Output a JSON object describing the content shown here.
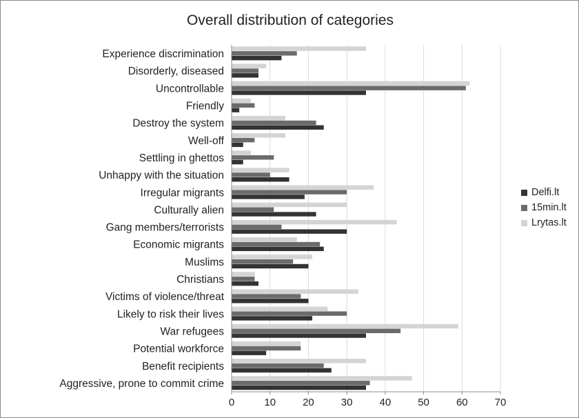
{
  "chart_data": {
    "type": "bar",
    "orientation": "horizontal",
    "title": "Overall distribution of categories",
    "categories": [
      "Experience discrimination",
      "Disorderly, diseased",
      "Uncontrollable",
      "Friendly",
      "Destroy the system",
      "Well-off",
      "Settling in ghettos",
      "Unhappy with the situation",
      "Irregular migrants",
      "Culturally alien",
      "Gang members/terrorists",
      "Economic migrants",
      "Muslims",
      "Christians",
      "Victims of violence/threat",
      "Likely to risk their lives",
      "War refugees",
      "Potential workforce",
      "Benefit recipients",
      "Aggressive, prone to commit crime"
    ],
    "series": [
      {
        "name": "Lrytas.lt",
        "color": "#d4d4d4",
        "values": [
          35,
          9,
          62,
          5,
          14,
          14,
          5,
          15,
          37,
          30,
          43,
          17,
          21,
          6,
          33,
          25,
          59,
          18,
          35,
          47
        ]
      },
      {
        "name": "15min.lt",
        "color": "#6b6b6b",
        "values": [
          17,
          7,
          61,
          6,
          22,
          6,
          11,
          10,
          30,
          11,
          13,
          23,
          16,
          6,
          18,
          30,
          44,
          18,
          24,
          36
        ]
      },
      {
        "name": "Delfi.lt",
        "color": "#333333",
        "values": [
          13,
          7,
          35,
          2,
          24,
          3,
          3,
          15,
          19,
          22,
          30,
          24,
          20,
          7,
          20,
          21,
          35,
          9,
          26,
          35
        ]
      }
    ],
    "legend_order": [
      "Delfi.lt",
      "15min.lt",
      "Lrytas.lt"
    ],
    "xlim": [
      0,
      70
    ],
    "xticks": [
      0,
      10,
      20,
      30,
      40,
      50,
      60,
      70
    ],
    "grid": "vertical",
    "legend_position": "right",
    "xlabel": "",
    "ylabel": ""
  }
}
